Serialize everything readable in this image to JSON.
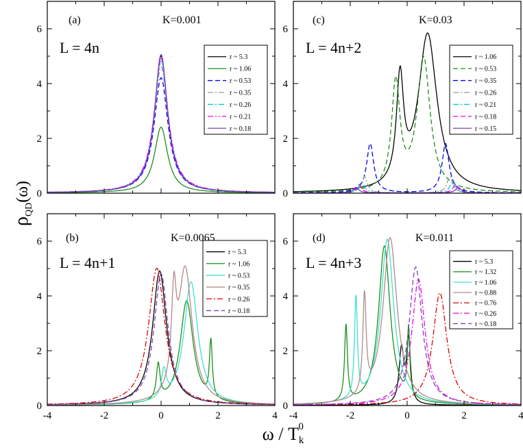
{
  "figure": {
    "ylabel_main": "ρ",
    "ylabel_sub": "QD",
    "ylabel_tail": "(ω)",
    "xlabel_main": "ω / T",
    "xlabel_sub": "k",
    "xlabel_sup": "0"
  },
  "chart_data": [
    {
      "type": "line",
      "panel_tag": "(a)",
      "coupling_label": "K=0.001",
      "length_label": "L = 4n",
      "xlim": [
        -4,
        4
      ],
      "ylim": [
        0,
        7
      ],
      "xticks": [
        "-4",
        "-2",
        "0",
        "2",
        "4"
      ],
      "yticks": [
        "0",
        "2",
        "4",
        "6"
      ],
      "series": [
        {
          "name": "r ~ 5.3",
          "color": "#000000",
          "dash": "solid",
          "peaks": [
            [
              0.0,
              5.0,
              0.28
            ]
          ]
        },
        {
          "name": "r ~ 1.06",
          "color": "#1a8f1a",
          "dash": "solid",
          "peaks": [
            [
              0.0,
              2.4,
              0.28
            ]
          ]
        },
        {
          "name": "r ~ 0.53",
          "color": "#0000ee",
          "dash": "dash",
          "peaks": [
            [
              0.0,
              4.2,
              0.3
            ]
          ]
        },
        {
          "name": "r ~ 0.35",
          "color": "#999999",
          "dash": "dashdot",
          "peaks": [
            [
              0.0,
              4.6,
              0.3
            ]
          ]
        },
        {
          "name": "r ~ 0.26",
          "color": "#00cccc",
          "dash": "dashdot",
          "peaks": [
            [
              0.0,
              4.8,
              0.3
            ]
          ]
        },
        {
          "name": "r ~ 0.21",
          "color": "#ee00ee",
          "dash": "dashdotdot",
          "peaks": [
            [
              0.0,
              4.9,
              0.3
            ]
          ]
        },
        {
          "name": "r ~ 0.18",
          "color": "#7f3fbf",
          "dash": "solid",
          "peaks": [
            [
              0.0,
              5.05,
              0.28
            ]
          ]
        }
      ]
    },
    {
      "type": "line",
      "panel_tag": "(b)",
      "coupling_label": "K=0.0065",
      "length_label": "L = 4n+1",
      "xlim": [
        -4,
        4
      ],
      "ylim": [
        0,
        7
      ],
      "xticks": [
        "-4",
        "-2",
        "0",
        "2",
        "4"
      ],
      "yticks": [
        "0",
        "2",
        "4",
        "6"
      ],
      "series": [
        {
          "name": "r ~ 5.3",
          "color": "#000000",
          "dash": "solid",
          "peaks": [
            [
              -0.05,
              4.9,
              0.3
            ]
          ]
        },
        {
          "name": "r ~ 1.06",
          "color": "#1a8f1a",
          "dash": "solid",
          "peaks": [
            [
              -0.1,
              1.3,
              0.08
            ],
            [
              0.9,
              3.8,
              0.28
            ],
            [
              1.75,
              2.1,
              0.06
            ]
          ]
        },
        {
          "name": "r ~ 0.53",
          "color": "#40e0d0",
          "dash": "solid",
          "peaks": [
            [
              0.1,
              1.0,
              0.1
            ],
            [
              1.05,
              4.5,
              0.3
            ]
          ]
        },
        {
          "name": "r ~ 0.35",
          "color": "#b08a8a",
          "dash": "solid",
          "peaks": [
            [
              0.45,
              3.1,
              0.1
            ],
            [
              0.85,
              4.9,
              0.3
            ]
          ]
        },
        {
          "name": "r ~ 0.26",
          "color": "#dd0000",
          "dash": "dashdot",
          "peaks": [
            [
              -0.15,
              5.0,
              0.35
            ]
          ]
        },
        {
          "name": "r ~ 0.18",
          "color": "#7f3fbf",
          "dash": "dash",
          "peaks": [
            [
              0.0,
              4.8,
              0.3
            ]
          ]
        }
      ]
    },
    {
      "type": "line",
      "panel_tag": "(c)",
      "coupling_label": "K=0.03",
      "length_label": "L = 4n+2",
      "xlim": [
        -4,
        4
      ],
      "ylim": [
        0,
        7
      ],
      "xticks": [
        "-4",
        "-2",
        "0",
        "2",
        "4"
      ],
      "yticks": [
        "0",
        "2",
        "4",
        "6"
      ],
      "series": [
        {
          "name": "r ~ 1.06",
          "color": "#000000",
          "dash": "solid",
          "peaks": [
            [
              -0.25,
              3.8,
              0.15
            ],
            [
              0.72,
              5.75,
              0.4
            ]
          ]
        },
        {
          "name": "r ~ 0.53",
          "color": "#1a8f1a",
          "dash": "dash",
          "peaks": [
            [
              -0.4,
              3.9,
              0.18
            ],
            [
              0.58,
              4.85,
              0.28
            ]
          ]
        },
        {
          "name": "r ~ 0.35",
          "color": "#0000ee",
          "dash": "dash",
          "peaks": [
            [
              -1.3,
              1.8,
              0.15
            ],
            [
              1.35,
              1.8,
              0.15
            ]
          ]
        },
        {
          "name": "r ~ 0.26",
          "color": "#999999",
          "dash": "dashdot",
          "peaks": [
            [
              -1.5,
              0.6,
              0.12
            ],
            [
              1.5,
              0.6,
              0.12
            ]
          ]
        },
        {
          "name": "r ~ 0.21",
          "color": "#00cccc",
          "dash": "dashdot",
          "peaks": [
            [
              -1.6,
              0.4,
              0.12
            ],
            [
              1.6,
              0.4,
              0.12
            ]
          ]
        },
        {
          "name": "r ~ 0.18",
          "color": "#ee00ee",
          "dash": "dash",
          "peaks": [
            [
              -1.7,
              0.3,
              0.12
            ],
            [
              1.7,
              0.3,
              0.12
            ]
          ]
        },
        {
          "name": "r ~ 0.15",
          "color": "#7f3fbf",
          "dash": "solid",
          "peaks": [
            [
              -1.8,
              0.2,
              0.12
            ],
            [
              1.8,
              0.2,
              0.12
            ]
          ]
        }
      ]
    },
    {
      "type": "line",
      "panel_tag": "(d)",
      "coupling_label": "K=0.011",
      "length_label": "L = 4n+3",
      "xlim": [
        -4,
        4
      ],
      "ylim": [
        0,
        7
      ],
      "xticks": [
        "-4",
        "-2",
        "0",
        "2",
        "4"
      ],
      "yticks": [
        "0",
        "2",
        "4",
        "6"
      ],
      "series": [
        {
          "name": "r ~ 5.3",
          "color": "#000000",
          "dash": "solid",
          "peaks": [
            [
              -0.2,
              2.0,
              0.1
            ],
            [
              0.05,
              2.3,
              0.08
            ]
          ]
        },
        {
          "name": "r ~ 1.32",
          "color": "#1a8f1a",
          "dash": "solid",
          "peaks": [
            [
              -2.15,
              2.8,
              0.06
            ],
            [
              -0.8,
              5.8,
              0.25
            ],
            [
              0.05,
              2.5,
              0.05
            ]
          ]
        },
        {
          "name": "r ~ 1.06",
          "color": "#40e0d0",
          "dash": "solid",
          "peaks": [
            [
              -1.8,
              3.7,
              0.06
            ],
            [
              -0.7,
              6.05,
              0.28
            ]
          ]
        },
        {
          "name": "r ~ 0.88",
          "color": "#b08a8a",
          "dash": "solid",
          "peaks": [
            [
              -1.5,
              3.6,
              0.07
            ],
            [
              -0.6,
              6.1,
              0.3
            ]
          ]
        },
        {
          "name": "r ~ 0.76",
          "color": "#dd0000",
          "dash": "dashdot",
          "peaks": [
            [
              1.15,
              4.1,
              0.3
            ]
          ]
        },
        {
          "name": "r ~ 0.26",
          "color": "#ee00ee",
          "dash": "dashdot",
          "peaks": [
            [
              0.4,
              4.6,
              0.28
            ]
          ]
        },
        {
          "name": "r ~ 0.18",
          "color": "#7f3fbf",
          "dash": "dash",
          "peaks": [
            [
              0.3,
              5.05,
              0.28
            ]
          ]
        }
      ]
    }
  ]
}
